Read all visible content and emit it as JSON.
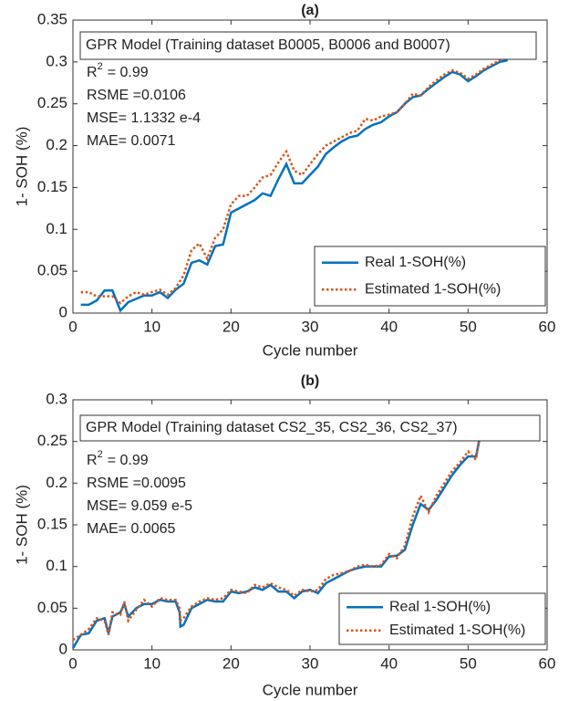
{
  "chart_data": [
    {
      "type": "line",
      "title": "(a)",
      "xlabel": "Cycle number",
      "ylabel": "1- SOH (%)",
      "model_text": "GPR Model (Training dataset B0005, B0006 and B0007)",
      "r_squared": {
        "symbol": "R",
        "exponent": "2",
        "text": "= 0.99"
      },
      "stats": [
        "RSME =0.0106",
        "MSE= 1.1332 e-4",
        "MAE= 0.0071"
      ],
      "x": [
        1,
        2,
        3,
        4,
        5,
        6,
        7,
        8,
        9,
        10,
        11,
        12,
        13,
        14,
        15,
        16,
        17,
        18,
        19,
        20,
        21,
        22,
        23,
        24,
        25,
        26,
        27,
        28,
        29,
        30,
        31,
        32,
        33,
        34,
        35,
        36,
        37,
        38,
        39,
        40,
        41,
        42,
        43,
        44,
        45,
        46,
        47,
        48,
        49,
        50,
        51,
        52,
        53,
        54,
        55
      ],
      "series": [
        {
          "name": "Real 1-SOH(%)",
          "color": "#0072bd",
          "style": "solid",
          "values": [
            0.01,
            0.01,
            0.015,
            0.027,
            0.027,
            0.003,
            0.013,
            0.017,
            0.021,
            0.021,
            0.025,
            0.018,
            0.028,
            0.035,
            0.06,
            0.063,
            0.058,
            0.08,
            0.082,
            0.12,
            0.125,
            0.13,
            0.135,
            0.143,
            0.14,
            0.16,
            0.178,
            0.155,
            0.155,
            0.165,
            0.175,
            0.19,
            0.198,
            0.205,
            0.21,
            0.212,
            0.22,
            0.225,
            0.228,
            0.235,
            0.24,
            0.25,
            0.258,
            0.26,
            0.268,
            0.275,
            0.282,
            0.288,
            0.285,
            0.277,
            0.283,
            0.29,
            0.295,
            0.3,
            0.302
          ]
        },
        {
          "name": "Estimated 1-SOH(%)",
          "color": "#d95319",
          "style": "dotted",
          "values": [
            0.025,
            0.025,
            0.02,
            0.02,
            0.02,
            0.012,
            0.02,
            0.025,
            0.022,
            0.025,
            0.028,
            0.022,
            0.03,
            0.045,
            0.075,
            0.083,
            0.065,
            0.09,
            0.1,
            0.13,
            0.14,
            0.14,
            0.15,
            0.162,
            0.165,
            0.18,
            0.193,
            0.17,
            0.165,
            0.178,
            0.19,
            0.2,
            0.205,
            0.21,
            0.215,
            0.218,
            0.232,
            0.23,
            0.235,
            0.237,
            0.24,
            0.25,
            0.262,
            0.26,
            0.27,
            0.278,
            0.285,
            0.29,
            0.287,
            0.28,
            0.285,
            0.292,
            0.297,
            0.302,
            0.305
          ]
        }
      ],
      "xlim": [
        0,
        60
      ],
      "xticks": [
        0,
        10,
        20,
        30,
        40,
        50,
        60
      ],
      "ylim": [
        0,
        0.35
      ],
      "yticks": [
        0,
        0.05,
        0.1,
        0.15,
        0.2,
        0.25,
        0.3,
        0.35
      ],
      "legend": "lower right",
      "grid": false
    },
    {
      "type": "line",
      "title": "(b)",
      "xlabel": "Cycle number",
      "ylabel": "1- SOH (%)",
      "model_text": "GPR Model (Training dataset CS2_35, CS2_36, CS2_37)",
      "r_squared": {
        "symbol": "R",
        "exponent": "2",
        "text": "= 0.99"
      },
      "stats": [
        "RSME =0.0095",
        "MSE= 9.059 e-5",
        "MAE= 0.0065"
      ],
      "x": [
        0,
        1,
        2,
        3,
        4,
        4.5,
        5,
        6,
        6.5,
        7,
        8,
        9,
        10,
        11,
        12,
        13,
        13.5,
        13.6,
        14,
        15,
        16,
        17,
        18,
        19,
        20,
        21,
        22,
        23,
        24,
        25,
        26,
        27,
        28,
        29,
        30,
        31,
        32,
        33,
        34,
        35,
        36,
        37,
        38,
        39,
        40,
        41,
        42,
        43,
        44,
        45,
        46,
        47,
        48,
        49,
        50,
        51,
        51.5,
        52
      ],
      "series": [
        {
          "name": "Real 1-SOH(%)",
          "color": "#0072bd",
          "style": "solid",
          "values": [
            0.002,
            0.018,
            0.02,
            0.035,
            0.038,
            0.02,
            0.04,
            0.045,
            0.055,
            0.04,
            0.05,
            0.055,
            0.055,
            0.06,
            0.058,
            0.058,
            0.045,
            0.028,
            0.03,
            0.05,
            0.055,
            0.06,
            0.058,
            0.058,
            0.07,
            0.068,
            0.07,
            0.075,
            0.072,
            0.078,
            0.07,
            0.07,
            0.062,
            0.07,
            0.072,
            0.068,
            0.08,
            0.085,
            0.09,
            0.095,
            0.098,
            0.1,
            0.1,
            0.1,
            0.112,
            0.113,
            0.12,
            0.15,
            0.175,
            0.168,
            0.18,
            0.195,
            0.21,
            0.222,
            0.232,
            0.232,
            0.255,
            0.258
          ]
        },
        {
          "name": "Estimated 1-SOH(%)",
          "color": "#d95319",
          "style": "dotted",
          "values": [
            0.012,
            0.018,
            0.025,
            0.038,
            0.035,
            0.018,
            0.045,
            0.042,
            0.058,
            0.035,
            0.048,
            0.06,
            0.052,
            0.062,
            0.06,
            0.06,
            0.05,
            0.035,
            0.038,
            0.052,
            0.058,
            0.062,
            0.06,
            0.062,
            0.072,
            0.07,
            0.068,
            0.078,
            0.075,
            0.08,
            0.075,
            0.072,
            0.065,
            0.072,
            0.07,
            0.072,
            0.085,
            0.09,
            0.092,
            0.095,
            0.1,
            0.102,
            0.1,
            0.102,
            0.115,
            0.11,
            0.125,
            0.16,
            0.185,
            0.165,
            0.185,
            0.2,
            0.215,
            0.225,
            0.238,
            0.228,
            0.26,
            0.262
          ]
        }
      ],
      "xlim": [
        0,
        60
      ],
      "xticks": [
        0,
        10,
        20,
        30,
        40,
        50,
        60
      ],
      "ylim": [
        0,
        0.3
      ],
      "yticks": [
        0,
        0.05,
        0.1,
        0.15,
        0.2,
        0.25,
        0.3
      ],
      "legend": "lower right",
      "grid": false
    }
  ]
}
